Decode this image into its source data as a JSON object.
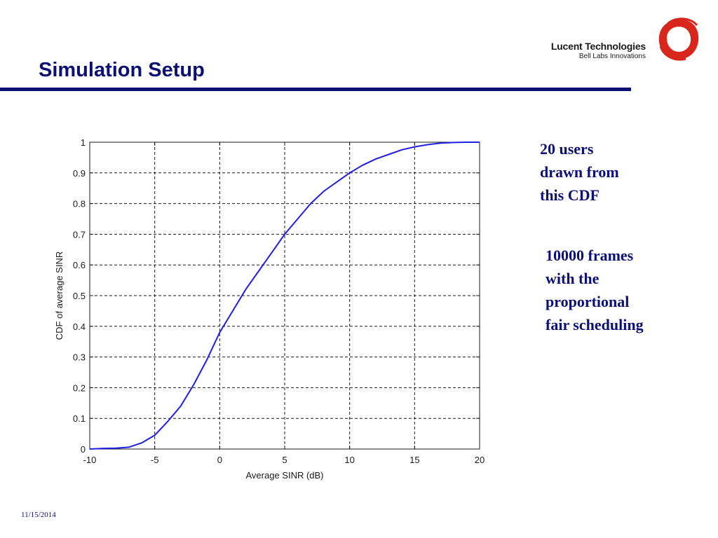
{
  "slide": {
    "title": "Simulation Setup",
    "date": "11/15/2014"
  },
  "logo": {
    "company": "Lucent Technologies",
    "tagline": "Bell Labs Innovations",
    "ring_color": "#d9261c"
  },
  "notes": {
    "note1": [
      "20 users",
      "drawn from",
      "this CDF"
    ],
    "note2": [
      "10000 frames",
      "with the",
      "proportional",
      "fair scheduling"
    ]
  },
  "colors": {
    "title": "#0c1075",
    "curve": "#1f1fe6"
  },
  "chart_data": {
    "type": "line",
    "xlabel": "Average SINR (dB)",
    "ylabel": "CDF of average SINR",
    "xlim": [
      -10,
      20
    ],
    "ylim": [
      0,
      1
    ],
    "xticks": [
      -10,
      -5,
      0,
      5,
      10,
      15,
      20
    ],
    "yticks": [
      0,
      0.1,
      0.2,
      0.3,
      0.4,
      0.5,
      0.6,
      0.7,
      0.8,
      0.9,
      1
    ],
    "grid": true,
    "series": [
      {
        "x": [
          -10,
          -9,
          -8,
          -7,
          -6,
          -5,
          -4,
          -3,
          -2,
          -1,
          0,
          1,
          2,
          3,
          4,
          5,
          6,
          7,
          8,
          9,
          10,
          11,
          12,
          13,
          14,
          15,
          16,
          17,
          18,
          19
        ],
        "y": [
          0,
          0.002,
          0.003,
          0.006,
          0.02,
          0.045,
          0.09,
          0.14,
          0.21,
          0.29,
          0.38,
          0.45,
          0.52,
          0.58,
          0.64,
          0.7,
          0.75,
          0.8,
          0.84,
          0.87,
          0.9,
          0.925,
          0.945,
          0.96,
          0.975,
          0.985,
          0.992,
          0.997,
          0.999,
          1
        ]
      }
    ]
  }
}
